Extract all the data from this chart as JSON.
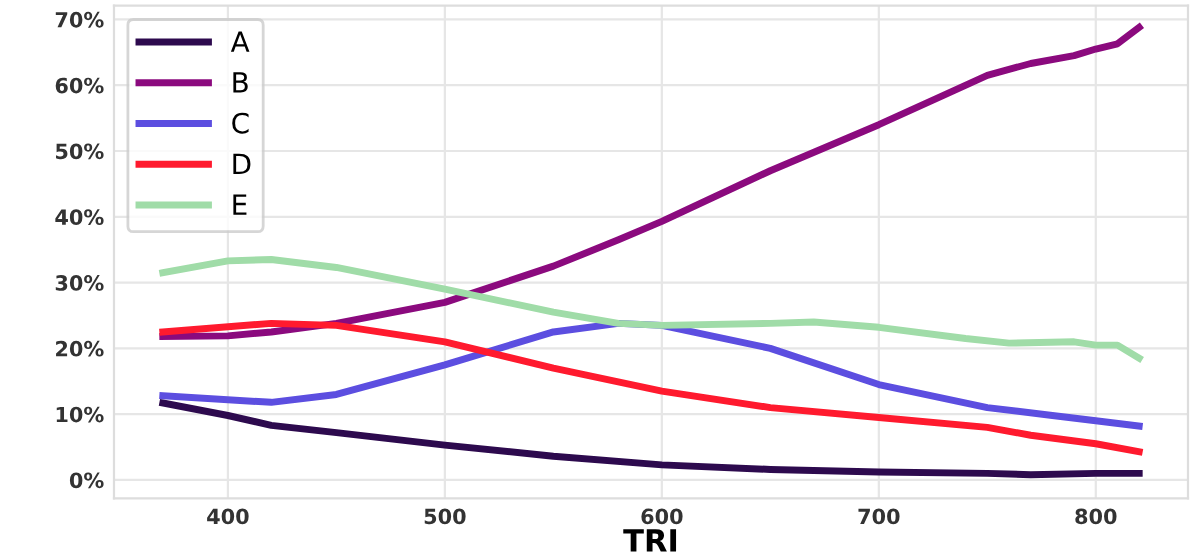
{
  "chart_data": {
    "type": "line",
    "xlabel": "TRI",
    "xlim": [
      347.5,
      842.5
    ],
    "xticks": [
      400,
      500,
      600,
      700,
      800
    ],
    "ylim": [
      -2.8,
      72.1
    ],
    "yticks": [
      {
        "value": 0,
        "label": "0%"
      },
      {
        "value": 10,
        "label": "10%"
      },
      {
        "value": 20,
        "label": "20%"
      },
      {
        "value": 30,
        "label": "30%"
      },
      {
        "value": 40,
        "label": "40%"
      },
      {
        "value": 50,
        "label": "50%"
      },
      {
        "value": 60,
        "label": "60%"
      },
      {
        "value": 70,
        "label": "70%"
      }
    ],
    "grid": true,
    "legend": "top left",
    "marker": "none",
    "line_style": "solid",
    "series": [
      {
        "name": "A",
        "color": "#2d0a4e",
        "x": [
          370,
          400,
          420,
          450,
          500,
          550,
          600,
          650,
          700,
          750,
          770,
          800,
          820
        ],
        "values": [
          11.7,
          9.8,
          8.3,
          7.2,
          5.3,
          3.6,
          2.3,
          1.6,
          1.2,
          1.0,
          0.8,
          1.0,
          1.0
        ]
      },
      {
        "name": "B",
        "color": "#8b0a7e",
        "x": [
          370,
          400,
          420,
          450,
          500,
          550,
          580,
          600,
          650,
          700,
          730,
          750,
          770,
          790,
          800,
          810,
          820
        ],
        "values": [
          21.8,
          21.9,
          22.5,
          23.8,
          27,
          32.5,
          36.5,
          39.3,
          47,
          54,
          58.5,
          61.5,
          63.3,
          64.5,
          65.5,
          66.3,
          68.8
        ]
      },
      {
        "name": "C",
        "color": "#5c4ee0",
        "x": [
          370,
          420,
          450,
          500,
          550,
          580,
          600,
          650,
          700,
          750,
          780,
          800,
          820
        ],
        "values": [
          12.8,
          11.8,
          13,
          17.5,
          22.5,
          23.8,
          23.5,
          20,
          14.5,
          11,
          9.8,
          9,
          8.2
        ]
      },
      {
        "name": "D",
        "color": "#ff1a2e",
        "x": [
          370,
          420,
          450,
          500,
          550,
          600,
          650,
          700,
          750,
          770,
          800,
          820
        ],
        "values": [
          22.5,
          23.8,
          23.5,
          21,
          17,
          13.5,
          11,
          9.5,
          8,
          6.8,
          5.5,
          4.3
        ]
      },
      {
        "name": "E",
        "color": "#a0dca8",
        "x": [
          370,
          400,
          420,
          450,
          500,
          550,
          580,
          600,
          650,
          670,
          700,
          740,
          760,
          790,
          800,
          810,
          820
        ],
        "values": [
          31.5,
          33.3,
          33.5,
          32.3,
          29,
          25.5,
          23.8,
          23.5,
          23.8,
          24,
          23.2,
          21.5,
          20.8,
          21,
          20.5,
          20.5,
          18.5
        ]
      }
    ]
  }
}
